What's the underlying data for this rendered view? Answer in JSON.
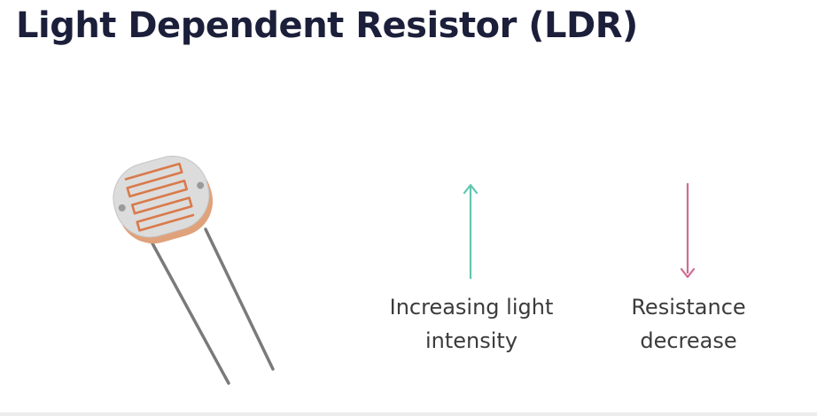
{
  "title": "Light Dependent Resistor (LDR)",
  "captions": {
    "light": "Increasing light\nintensity",
    "resistance": "Resistance\ndecrease"
  },
  "colors": {
    "title": "#1c1f3a",
    "up_arrow": "#5fc8b0",
    "down_arrow": "#d06a94",
    "ldr_body": "#d9d9d9",
    "ldr_trace": "#d97a4a",
    "ldr_rim": "#e0a27b",
    "leads": "#7a7a7a"
  },
  "icons": {
    "component": "ldr-component-icon",
    "up": "arrow-up-icon",
    "down": "arrow-down-icon"
  }
}
